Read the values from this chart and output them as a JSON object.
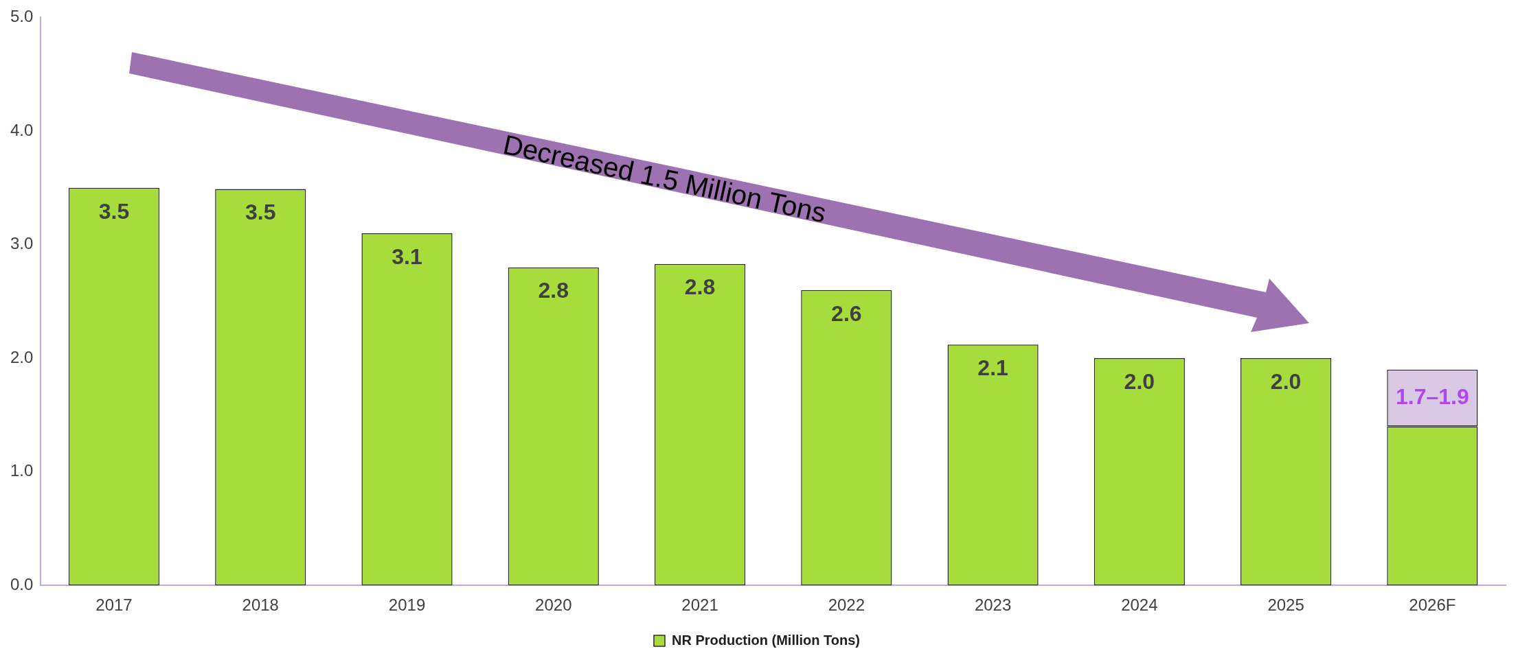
{
  "chart_data": {
    "type": "bar",
    "stacked": true,
    "categories": [
      "2017",
      "2018",
      "2019",
      "2020",
      "2021",
      "2022",
      "2023",
      "2024",
      "2025",
      "2026F"
    ],
    "series": [
      {
        "name": "NR Production (Million Tons)",
        "color": "#a6dc3c",
        "values": [
          3.5,
          3.49,
          3.1,
          2.8,
          2.83,
          2.6,
          2.12,
          2.0,
          2.0,
          1.4
        ],
        "value_labels": [
          "3.5",
          "3.5",
          "3.1",
          "2.8",
          "2.8",
          "2.6",
          "2.1",
          "2.0",
          "2.0",
          null
        ]
      },
      {
        "color": "#d9c9e4",
        "values": [
          null,
          null,
          null,
          null,
          null,
          null,
          null,
          null,
          null,
          0.5
        ],
        "value_labels": [
          null,
          null,
          null,
          null,
          null,
          null,
          null,
          null,
          null,
          "1.7–1.9"
        ]
      }
    ],
    "ylim": [
      0,
      5
    ],
    "yticks": [
      {
        "value": 0,
        "label": "0.0"
      },
      {
        "value": 1,
        "label": "1.0"
      },
      {
        "value": 2,
        "label": "2.0"
      },
      {
        "value": 3,
        "label": "3.0"
      },
      {
        "value": 4,
        "label": "4.0"
      },
      {
        "value": 5,
        "label": "5.0"
      }
    ],
    "grid": false,
    "legend": "bottom",
    "annotations": [
      "Decreased 1.5 Million Tons"
    ]
  }
}
